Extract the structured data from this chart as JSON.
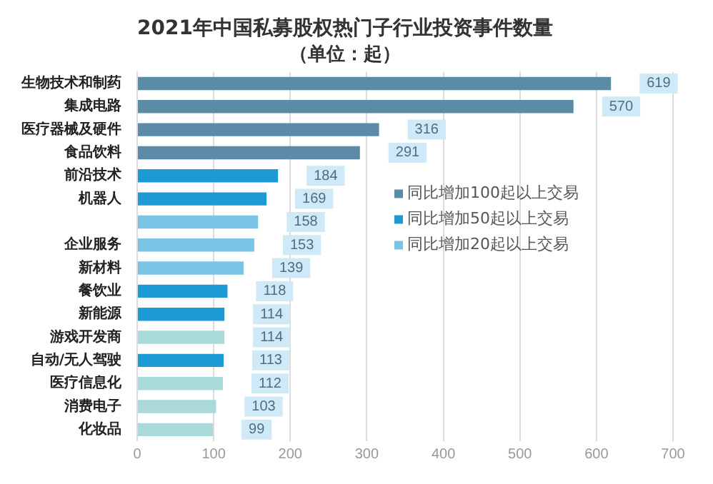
{
  "chart_data": {
    "type": "bar",
    "orientation": "horizontal",
    "stacked": true,
    "title": "2021年中国私募股权热门子行业投资事件数量",
    "subtitle": "（单位：起）",
    "categories": [
      "生物技术和制药",
      "集成电路",
      "医疗器械及硬件",
      "食品饮料",
      "前沿技术",
      "机器人",
      null,
      "企业服务",
      "新材料",
      "餐饮业",
      "新能源",
      "游戏开发商",
      "自动/无人驾驶",
      "医疗信息化",
      "消费电子",
      "化妆品"
    ],
    "series": [
      {
        "name": "同比增加100起以上交易",
        "color": "#5b8ba6",
        "values": [
          619,
          570,
          316,
          291,
          null,
          null,
          null,
          null,
          null,
          null,
          null,
          null,
          null,
          null,
          null,
          null
        ]
      },
      {
        "name": "同比增加50起以上交易",
        "color": "#1d9ad6",
        "values": [
          null,
          null,
          null,
          null,
          184,
          169,
          null,
          null,
          null,
          118,
          114,
          null,
          113,
          null,
          null,
          null
        ]
      },
      {
        "name": "同比增加20起以上交易",
        "color": "#7cc3e8",
        "values": [
          null,
          null,
          null,
          null,
          null,
          null,
          158,
          153,
          139,
          null,
          null,
          null,
          null,
          null,
          null,
          null
        ]
      },
      {
        "color": "#a9d9d9",
        "values": [
          null,
          null,
          null,
          null,
          null,
          null,
          null,
          null,
          null,
          null,
          null,
          114,
          null,
          112,
          103,
          99
        ]
      }
    ],
    "xlim": [
      0,
      700
    ],
    "xticks": [
      0,
      100,
      200,
      300,
      400,
      500,
      600,
      700
    ],
    "grid": "x",
    "legend": "right",
    "data_labels": true
  }
}
